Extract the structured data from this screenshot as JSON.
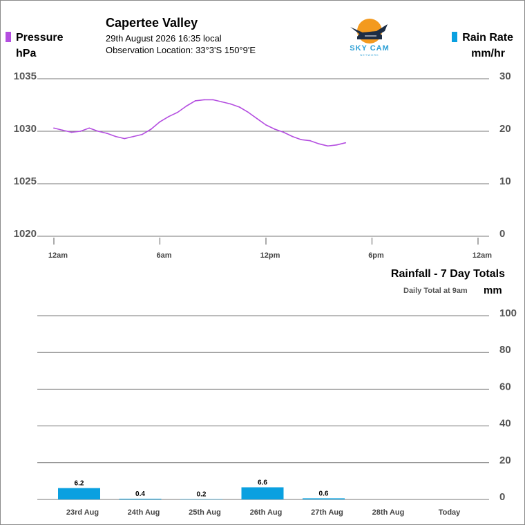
{
  "header": {
    "location_name": "Capertee Valley",
    "datetime": "29th August 2026  16:35 local",
    "observation_location": "Observation Location: 33°3'S 150°9'E",
    "logo_text": "SKY CAM",
    "logo_subtext": "NETWORK"
  },
  "colors": {
    "pressure_line": "#b44ee0",
    "rain_bar": "#0aa0e0",
    "grid": "#777777"
  },
  "pressure_chart": {
    "left_label": "Pressure",
    "left_unit": "hPa",
    "right_label": "Rain Rate",
    "right_unit": "mm/hr"
  },
  "rainfall_chart": {
    "title": "Rainfall - 7 Day Totals",
    "note": "Daily Total at 9am",
    "unit": "mm"
  },
  "chart_data": [
    {
      "type": "line",
      "series": [
        {
          "x": [
            0.0,
            0.5,
            1.0,
            1.5,
            2.0,
            2.5,
            3.0,
            3.5,
            4.0,
            4.5,
            5.0,
            5.5,
            6.0,
            6.5,
            7.0,
            7.5,
            8.0,
            8.5,
            9.0,
            9.5,
            10.0,
            10.5,
            11.0,
            11.5,
            12.0,
            12.5,
            13.0,
            13.5,
            14.0,
            14.5,
            15.0,
            15.5,
            16.0,
            16.5
          ],
          "y": [
            1030.3,
            1030.1,
            1029.9,
            1030.0,
            1030.3,
            1030.0,
            1029.8,
            1029.5,
            1029.3,
            1029.5,
            1029.7,
            1030.2,
            1030.9,
            1031.4,
            1031.8,
            1032.4,
            1032.9,
            1033.0,
            1033.0,
            1032.8,
            1032.6,
            1032.3,
            1031.8,
            1031.2,
            1030.6,
            1030.2,
            1029.9,
            1029.5,
            1029.2,
            1029.1,
            1028.8,
            1028.6,
            1028.7,
            1028.9
          ]
        }
      ],
      "xlim": [
        0,
        24
      ],
      "x_ticks": [
        0,
        6,
        12,
        18,
        24
      ],
      "x_tick_labels": [
        "12am",
        "6am",
        "12pm",
        "6pm",
        "12am"
      ],
      "ylim": [
        1020,
        1035
      ],
      "y_ticks": [
        1035,
        1030,
        1025,
        1020
      ],
      "y_tick_labels": [
        "1035",
        "1030",
        "1025",
        "1020"
      ],
      "y2lim": [
        0,
        30
      ],
      "y2_ticks": [
        30,
        20,
        10,
        0
      ],
      "y2_tick_labels": [
        "30",
        "20",
        "10",
        "0"
      ],
      "grid": true
    },
    {
      "type": "bar",
      "categories": [
        "23rd Aug",
        "24th Aug",
        "25th Aug",
        "26th Aug",
        "27th Aug",
        "28th Aug",
        "Today"
      ],
      "values": [
        6.2,
        0.4,
        0.2,
        6.6,
        0.6,
        null,
        null
      ],
      "value_labels": [
        "6.2",
        "0.4",
        "0.2",
        "6.6",
        "0.6",
        "",
        ""
      ],
      "ylim": [
        0,
        100
      ],
      "y_ticks": [
        100,
        80,
        60,
        40,
        20,
        0
      ],
      "y_tick_labels": [
        "100",
        "80",
        "60",
        "40",
        "20",
        "0"
      ],
      "grid": true
    }
  ]
}
